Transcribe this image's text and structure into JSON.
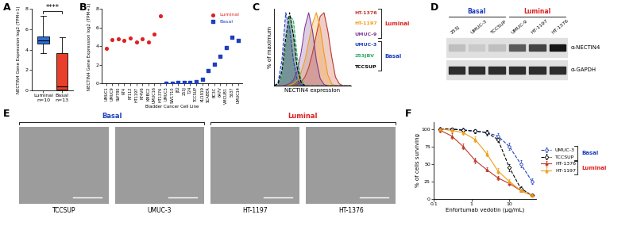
{
  "chart_data": [
    {
      "panel": "A",
      "type": "box",
      "categories": [
        "Luminal\nn=10",
        "Basal\nn=13"
      ],
      "boxes": [
        {
          "min": 3.7,
          "q1": 4.6,
          "median": 4.9,
          "q3": 5.3,
          "max": 7.3
        },
        {
          "min": 0.0,
          "q1": 0.1,
          "median": 0.4,
          "q3": 3.7,
          "max": 5.2
        }
      ],
      "colors": [
        "#2e6fd8",
        "#e8402a"
      ],
      "y_label": "NECTIN4 Gene Expression log2 (TPM+1)",
      "ylim": [
        0,
        8
      ],
      "yticks": [
        0,
        2,
        4,
        6,
        8
      ],
      "annotation": "****"
    },
    {
      "panel": "B",
      "type": "scatter",
      "categories": [
        "UMUC1",
        "UMUC9",
        "SW780",
        "RT4",
        "RT112",
        "HT1197",
        "RT4V6",
        "KMBC2",
        "UMUC16",
        "HT1376",
        "UMUC3",
        "SW1710",
        "J82",
        "253J",
        "T24",
        "TCCSUP",
        "KU1919",
        "SCABER",
        "BC3C",
        "647V",
        "VMCUB1",
        "5637",
        "UMUC14"
      ],
      "series": [
        {
          "name": "Luminal",
          "color": "#e02020",
          "marker": "circle",
          "values": [
            3.8,
            4.7,
            4.8,
            4.6,
            4.9,
            4.5,
            4.8,
            4.5,
            5.3,
            7.3,
            null,
            null,
            null,
            null,
            null,
            null,
            null,
            null,
            null,
            null,
            null,
            null,
            null
          ]
        },
        {
          "name": "Basal",
          "color": "#1f3fbf",
          "marker": "square",
          "values": [
            null,
            null,
            null,
            null,
            null,
            null,
            null,
            null,
            null,
            null,
            0.0,
            0.05,
            0.1,
            0.1,
            0.1,
            0.2,
            0.5,
            1.4,
            2.1,
            2.9,
            3.9,
            5.0,
            4.6
          ]
        }
      ],
      "x_label": "Bladder Cancer Cell Line",
      "y_label": "NECTIN4 Gene Expression log2 (TPM+1)",
      "ylim": [
        0,
        8
      ],
      "yticks": [
        0,
        2,
        4,
        6,
        8
      ],
      "legend": "upper right"
    },
    {
      "panel": "C",
      "type": "area",
      "x": [
        0,
        5,
        10,
        15,
        20,
        25,
        30,
        35,
        40,
        45,
        50,
        55,
        60,
        65,
        70,
        75,
        80,
        85,
        90,
        95,
        100
      ],
      "xlim": [
        0,
        100
      ],
      "ylim": [
        0,
        105
      ],
      "tick_labels": false,
      "x_label": "NECTIN4 expression",
      "y_label": "% of maximum",
      "series": [
        {
          "name": "HT-1376",
          "color": "#c0392b",
          "line_style": "solid",
          "values": [
            0,
            0,
            0,
            0,
            0,
            0,
            2,
            5,
            12,
            25,
            45,
            70,
            95,
            100,
            75,
            40,
            12,
            3,
            0,
            0,
            0
          ]
        },
        {
          "name": "HT-1197",
          "color": "#f39c12",
          "line_style": "solid",
          "values": [
            0,
            0,
            0,
            0,
            1,
            3,
            8,
            18,
            35,
            60,
            85,
            100,
            80,
            45,
            15,
            3,
            0,
            0,
            0,
            0,
            0
          ]
        },
        {
          "name": "UMUC-9",
          "color": "#7d3c98",
          "line_style": "solid",
          "values": [
            0,
            0,
            0,
            1,
            3,
            8,
            20,
            45,
            80,
            100,
            75,
            35,
            10,
            2,
            0,
            0,
            0,
            0,
            0,
            0,
            0
          ]
        },
        {
          "name": "UMUC-3",
          "color": "#1f3fbf",
          "line_style": "dashed",
          "values": [
            0,
            5,
            35,
            100,
            80,
            35,
            8,
            1,
            0,
            0,
            0,
            0,
            0,
            0,
            0,
            0,
            0,
            0,
            0,
            0,
            0
          ]
        },
        {
          "name": "253JBV",
          "color": "#27ae60",
          "line_style": "dashed",
          "values": [
            0,
            2,
            12,
            50,
            95,
            90,
            40,
            8,
            1,
            0,
            0,
            0,
            0,
            0,
            0,
            0,
            0,
            0,
            0,
            0,
            0
          ]
        },
        {
          "name": "TCCSUP",
          "color": "#000000",
          "line_style": "dashed",
          "values": [
            0,
            3,
            20,
            65,
            100,
            70,
            25,
            5,
            0,
            0,
            0,
            0,
            0,
            0,
            0,
            0,
            0,
            0,
            0,
            0,
            0
          ]
        }
      ],
      "groups": [
        {
          "name": "Luminal",
          "color": "#e02020",
          "members": [
            "HT-1376",
            "HT-1197",
            "UMUC-9"
          ]
        },
        {
          "name": "Basal",
          "color": "#1f3fbf",
          "members": [
            "UMUC-3",
            "253JBV",
            "TCCSUP"
          ]
        }
      ]
    },
    {
      "panel": "D",
      "type": "blot",
      "columns": [
        "253J",
        "UMUC-3",
        "TCCSUP",
        "UMUC-9",
        "HT-1197",
        "HT-1376"
      ],
      "rows": [
        {
          "name": "α-NECTIN4",
          "intensities": [
            0.15,
            0.1,
            0.15,
            0.6,
            0.7,
            0.9
          ]
        },
        {
          "name": "α-GAPDH",
          "intensities": [
            0.8,
            0.8,
            0.8,
            0.8,
            0.8,
            0.8
          ]
        }
      ],
      "groups": [
        {
          "name": "Basal",
          "color": "#1f3fbf",
          "members": [
            "253J",
            "UMUC-3",
            "TCCSUP"
          ]
        },
        {
          "name": "Luminal",
          "color": "#e02020",
          "members": [
            "UMUC-9",
            "HT-1197",
            "HT-1376"
          ]
        }
      ]
    },
    {
      "panel": "E",
      "type": "image",
      "labels": [
        "TCCSUP",
        "UMUC-3",
        "HT-1197",
        "HT-1376"
      ],
      "groups": [
        {
          "name": "Basal",
          "color": "#1f3fbf",
          "members": [
            "TCCSUP",
            "UMUC-3"
          ]
        },
        {
          "name": "Luminal",
          "color": "#e02020",
          "members": [
            "HT-1197",
            "HT-1376"
          ]
        }
      ]
    },
    {
      "panel": "F",
      "type": "line",
      "x": [
        0.15,
        0.3,
        0.6,
        1.25,
        2.5,
        5,
        10,
        20,
        40
      ],
      "log": "x",
      "xlim": [
        0.1,
        50
      ],
      "xticks": [
        0.1,
        1,
        10
      ],
      "ylim": [
        0,
        110
      ],
      "yticks": [
        0,
        25,
        50,
        75,
        100
      ],
      "x_label": "Enfortumab vedotin (μg/mL)",
      "y_label": "% of cells surviving",
      "legend": "center left",
      "series": [
        {
          "name": "UMUC-3",
          "color": "#1f3fbf",
          "marker": "circle",
          "line_style": "dashed",
          "values": [
            100,
            100,
            99,
            97,
            95,
            90,
            75,
            50,
            25
          ],
          "errors": [
            3,
            2,
            3,
            3,
            4,
            4,
            5,
            5,
            4
          ]
        },
        {
          "name": "TCCSUP",
          "color": "#000000",
          "marker": "diamond",
          "line_style": "dashed",
          "values": [
            100,
            100,
            98,
            97,
            95,
            85,
            45,
            15,
            5
          ],
          "errors": [
            2,
            2,
            3,
            3,
            3,
            4,
            5,
            3,
            2
          ]
        },
        {
          "name": "HT-1376",
          "color": "#c0392b",
          "marker": "triangle",
          "line_style": "solid",
          "values": [
            98,
            90,
            75,
            55,
            42,
            30,
            22,
            12,
            5
          ],
          "errors": [
            3,
            4,
            4,
            4,
            3,
            3,
            3,
            2,
            2
          ]
        },
        {
          "name": "HT-1197",
          "color": "#f39c12",
          "marker": "triangle",
          "line_style": "solid",
          "values": [
            100,
            98,
            95,
            85,
            65,
            40,
            25,
            12,
            5
          ],
          "errors": [
            2,
            3,
            3,
            4,
            4,
            4,
            3,
            2,
            2
          ]
        }
      ],
      "groups": [
        {
          "name": "Basal",
          "color": "#1f3fbf",
          "members": [
            "UMUC-3",
            "TCCSUP"
          ]
        },
        {
          "name": "Luminal",
          "color": "#e02020",
          "members": [
            "HT-1376",
            "HT-1197"
          ]
        }
      ]
    }
  ]
}
